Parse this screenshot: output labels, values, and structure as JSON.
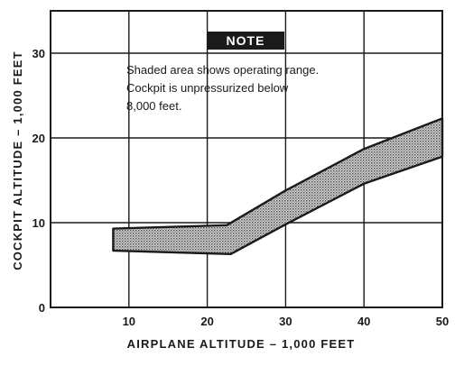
{
  "chart_data": {
    "type": "area",
    "title": "",
    "xlabel": "AIRPLANE ALTITUDE – 1,000 FEET",
    "ylabel": "COCKPIT ALTITUDE – 1,000 FEET",
    "xlim": [
      0,
      50
    ],
    "ylim": [
      0,
      35
    ],
    "x_ticks": [
      10,
      20,
      30,
      40,
      50
    ],
    "y_ticks": [
      0,
      10,
      20,
      30
    ],
    "grid": true,
    "band": {
      "upper": [
        [
          8,
          9.3
        ],
        [
          22.5,
          9.7
        ],
        [
          30,
          13.8
        ],
        [
          40,
          18.7
        ],
        [
          50,
          22.3
        ]
      ],
      "lower": [
        [
          8,
          6.7
        ],
        [
          23,
          6.3
        ],
        [
          30,
          9.8
        ],
        [
          40,
          14.6
        ],
        [
          50,
          17.8
        ]
      ]
    },
    "note": {
      "badge": "NOTE",
      "lines": [
        "Shaded area shows operating range.",
        "Cockpit is unpressurized below",
        "8,000 feet."
      ]
    },
    "colors": {
      "ink": "#1a1a1a",
      "shade": "#9a9a9a"
    }
  }
}
